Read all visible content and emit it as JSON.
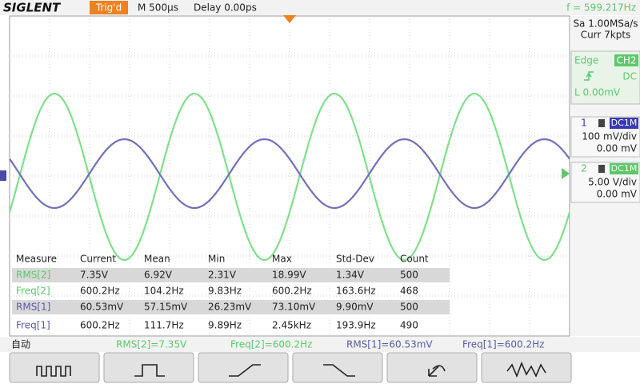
{
  "header": {
    "brand": "SIGLENT",
    "trigger_status": "Trig'd",
    "timebase": "M 500μs",
    "delay": "Delay 0.00ps",
    "frequency": "f = 599.217Hz"
  },
  "acquisition": {
    "sample_rate": "Sa 1.00MSa/s",
    "memory": "Curr 7kpts"
  },
  "trigger": {
    "type": "Edge",
    "source": "CH2",
    "coupling": "DC",
    "level": "L  0.00mV"
  },
  "channels": [
    {
      "number": "1",
      "coupling": "DC1M",
      "scale": "100 mV/div",
      "offset": "0.00 mV"
    },
    {
      "number": "2",
      "coupling": "DC1M",
      "scale": "5.00 V/div",
      "offset": "0.00 mV"
    }
  ],
  "measurements": {
    "columns": [
      "Measure",
      "Current",
      "Mean",
      "Min",
      "Max",
      "Std-Dev",
      "Count"
    ],
    "rows": [
      [
        "RMS[2]",
        "7.35V",
        "6.92V",
        "2.31V",
        "18.99V",
        "1.34V",
        "500"
      ],
      [
        "Freq[2]",
        "600.2Hz",
        "104.2Hz",
        "9.83Hz",
        "600.2Hz",
        "163.6Hz",
        "468"
      ],
      [
        "RMS[1]",
        "60.53mV",
        "57.15mV",
        "26.23mV",
        "73.10mV",
        "9.90mV",
        "500"
      ],
      [
        "Freq[1]",
        "600.2Hz",
        "111.7Hz",
        "9.89Hz",
        "2.45kHz",
        "193.9Hz",
        "490"
      ]
    ]
  },
  "status_bar": {
    "mode": "自动",
    "items": [
      "RMS[2]=7.35V",
      "Freq[2]=600.2Hz",
      "RMS[1]=60.53mV",
      "Freq[1]=600.2Hz"
    ]
  }
}
